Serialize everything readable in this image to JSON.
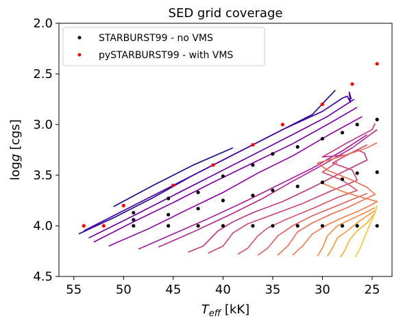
{
  "chart_data": {
    "type": "scatter",
    "title": "SED grid coverage",
    "xlabel_main": "T",
    "xlabel_sub": "eff",
    "xlabel_unit": " [kK]",
    "ylabel_prefix": "log",
    "ylabel_var": "g",
    "ylabel_unit": " [cgs]",
    "xlim": [
      56.5,
      23.0
    ],
    "ylim": [
      4.5,
      2.0
    ],
    "y_inverted": true,
    "x_inverted": true,
    "xticks": [
      55,
      50,
      45,
      40,
      35,
      30,
      25
    ],
    "yticks": [
      2.0,
      2.5,
      3.0,
      3.5,
      4.0,
      4.5
    ],
    "xtick_labels": [
      "55",
      "50",
      "45",
      "40",
      "35",
      "30",
      "25"
    ],
    "ytick_labels": [
      "2.0",
      "2.5",
      "3.0",
      "3.5",
      "4.0",
      "4.5"
    ],
    "grid": false,
    "legend_position": "top-left",
    "series": [
      {
        "name": "STARBURST99 - no VMS",
        "color": "#000000",
        "points": [
          [
            49,
            4.0
          ],
          [
            45.5,
            4.0
          ],
          [
            42.5,
            4.0
          ],
          [
            40,
            4.0
          ],
          [
            37,
            4.0
          ],
          [
            35,
            4.0
          ],
          [
            32.5,
            4.0
          ],
          [
            30,
            4.0
          ],
          [
            28,
            4.0
          ],
          [
            26.5,
            4.0
          ],
          [
            24.5,
            4.0
          ],
          [
            49,
            3.87
          ],
          [
            49,
            3.94
          ],
          [
            45.5,
            3.89
          ],
          [
            45.5,
            3.73
          ],
          [
            42.5,
            3.83
          ],
          [
            42.5,
            3.67
          ],
          [
            40,
            3.75
          ],
          [
            40,
            3.51
          ],
          [
            37,
            3.7
          ],
          [
            37,
            3.4
          ],
          [
            35,
            3.65
          ],
          [
            35,
            3.29
          ],
          [
            32.5,
            3.61
          ],
          [
            32.5,
            3.22
          ],
          [
            30,
            3.57
          ],
          [
            30,
            3.14
          ],
          [
            28,
            3.54
          ],
          [
            28,
            3.08
          ],
          [
            26.5,
            3.48
          ],
          [
            26.5,
            3.0
          ],
          [
            24.5,
            3.47
          ],
          [
            24.5,
            2.95
          ]
        ]
      },
      {
        "name": "pySTARBURST99 - with VMS",
        "color": "#ff0000",
        "points": [
          [
            54,
            4.0
          ],
          [
            52,
            4.0
          ],
          [
            50,
            3.8
          ],
          [
            45,
            3.6
          ],
          [
            41,
            3.4
          ],
          [
            37,
            3.2
          ],
          [
            34,
            3.0
          ],
          [
            30,
            2.8
          ],
          [
            27,
            2.6
          ],
          [
            24.5,
            2.4
          ]
        ]
      }
    ],
    "tracks": [
      {
        "color": "#1a0b8a",
        "points": [
          [
            51,
            3.81
          ],
          [
            47,
            3.6
          ],
          [
            43,
            3.4
          ],
          [
            39,
            3.23
          ]
        ]
      },
      {
        "color": "#2a0593",
        "points": [
          [
            54.5,
            4.08
          ],
          [
            51,
            3.92
          ],
          [
            47,
            3.72
          ],
          [
            43,
            3.5
          ],
          [
            39,
            3.3
          ],
          [
            35,
            3.1
          ],
          [
            31,
            2.9
          ],
          [
            28.7,
            2.66
          ]
        ]
      },
      {
        "color": "#4a02a0",
        "points": [
          [
            54,
            4.05
          ],
          [
            50,
            3.85
          ],
          [
            46,
            3.65
          ],
          [
            42,
            3.45
          ],
          [
            38,
            3.25
          ],
          [
            34,
            3.05
          ],
          [
            30,
            2.87
          ],
          [
            28,
            2.74
          ],
          [
            27.5,
            2.72
          ],
          [
            27.2,
            2.78
          ],
          [
            27.3,
            2.68
          ],
          [
            27.1,
            2.75
          ]
        ]
      },
      {
        "color": "#6a00a8",
        "points": [
          [
            53.5,
            4.12
          ],
          [
            49,
            3.9
          ],
          [
            45,
            3.7
          ],
          [
            41,
            3.5
          ],
          [
            37,
            3.3
          ],
          [
            33,
            3.1
          ],
          [
            29.5,
            2.92
          ],
          [
            26.8,
            2.75
          ]
        ]
      },
      {
        "color": "#7e03a8",
        "points": [
          [
            53,
            4.16
          ],
          [
            49,
            3.96
          ],
          [
            45,
            3.77
          ],
          [
            41,
            3.57
          ],
          [
            37,
            3.38
          ],
          [
            33,
            3.19
          ],
          [
            29.5,
            3.0
          ],
          [
            26.5,
            2.83
          ]
        ]
      },
      {
        "color": "#8f0da4",
        "points": [
          [
            51.5,
            4.2
          ],
          [
            47.5,
            4.03
          ],
          [
            44,
            3.86
          ],
          [
            40,
            3.67
          ],
          [
            36.5,
            3.48
          ],
          [
            33,
            3.31
          ],
          [
            29.5,
            3.11
          ],
          [
            26,
            2.92
          ]
        ]
      },
      {
        "color": "#a2229b",
        "points": [
          [
            48.5,
            4.23
          ],
          [
            45,
            4.08
          ],
          [
            41.5,
            3.93
          ],
          [
            38,
            3.77
          ],
          [
            34.5,
            3.6
          ],
          [
            31,
            3.43
          ],
          [
            28,
            3.26
          ],
          [
            25.5,
            3.1
          ]
        ]
      },
      {
        "color": "#b22d8f",
        "points": [
          [
            46.5,
            4.21
          ],
          [
            43,
            4.06
          ],
          [
            39.5,
            3.9
          ],
          [
            36,
            3.73
          ],
          [
            33,
            3.56
          ],
          [
            30,
            3.4
          ],
          [
            27,
            3.23
          ],
          [
            24.5,
            3.05
          ]
        ]
      },
      {
        "color": "#c03a83",
        "points": [
          [
            43.5,
            4.26
          ],
          [
            42,
            4.2
          ],
          [
            40.5,
            4.05
          ],
          [
            39,
            3.96
          ],
          [
            37,
            3.87
          ],
          [
            34,
            3.76
          ],
          [
            31,
            3.62
          ],
          [
            28,
            3.47
          ],
          [
            25.5,
            3.35
          ],
          [
            25.8,
            3.28
          ],
          [
            26.5,
            3.25
          ],
          [
            27.5,
            3.3
          ],
          [
            30,
            3.32
          ],
          [
            27.5,
            3.18
          ],
          [
            25,
            3.05
          ],
          [
            24.7,
            2.99
          ]
        ]
      },
      {
        "color": "#cc4778",
        "points": [
          [
            41.5,
            4.27
          ],
          [
            40,
            4.2
          ],
          [
            39,
            4.07
          ],
          [
            37.5,
            3.98
          ],
          [
            35,
            3.89
          ],
          [
            32,
            3.78
          ],
          [
            29,
            3.65
          ],
          [
            26.5,
            3.55
          ],
          [
            27,
            3.45
          ],
          [
            29,
            3.38
          ],
          [
            27.5,
            3.3
          ],
          [
            25.5,
            3.2
          ]
        ]
      },
      {
        "color": "#d6556d",
        "points": [
          [
            38.5,
            4.28
          ],
          [
            37.5,
            4.22
          ],
          [
            36.5,
            4.1
          ],
          [
            35.5,
            4.02
          ],
          [
            33.5,
            3.93
          ],
          [
            31,
            3.83
          ],
          [
            28.5,
            3.72
          ],
          [
            26.5,
            3.65
          ],
          [
            28,
            3.55
          ],
          [
            30,
            3.47
          ],
          [
            28.5,
            3.37
          ]
        ]
      },
      {
        "color": "#e16462",
        "points": [
          [
            36.5,
            4.29
          ],
          [
            35.5,
            4.22
          ],
          [
            34.5,
            4.1
          ],
          [
            33,
            4.0
          ],
          [
            31,
            3.9
          ],
          [
            29,
            3.82
          ],
          [
            27,
            3.74
          ],
          [
            25.5,
            3.68
          ]
        ]
      },
      {
        "color": "#e97257",
        "points": [
          [
            34.5,
            4.29
          ],
          [
            33.5,
            4.2
          ],
          [
            32.5,
            4.06
          ],
          [
            31,
            3.97
          ],
          [
            29,
            3.88
          ],
          [
            27.5,
            3.82
          ],
          [
            26,
            3.75
          ],
          [
            24.7,
            3.69
          ],
          [
            25.5,
            3.62
          ],
          [
            27,
            3.55
          ],
          [
            29.5,
            3.45
          ],
          [
            30.5,
            3.38
          ],
          [
            29,
            3.34
          ],
          [
            27,
            3.28
          ],
          [
            25.5,
            3.23
          ],
          [
            24.5,
            3.18
          ]
        ]
      },
      {
        "color": "#f0804e",
        "points": [
          [
            33,
            4.29
          ],
          [
            32,
            4.2
          ],
          [
            31,
            4.08
          ],
          [
            29.5,
            3.99
          ],
          [
            28,
            3.92
          ],
          [
            26.5,
            3.86
          ],
          [
            25,
            3.79
          ],
          [
            24.5,
            3.76
          ],
          [
            26,
            3.72
          ],
          [
            28,
            3.66
          ],
          [
            30,
            3.58
          ]
        ]
      },
      {
        "color": "#f48e44",
        "points": [
          [
            30.5,
            4.3
          ],
          [
            30,
            4.22
          ],
          [
            29.5,
            4.1
          ],
          [
            28.5,
            4.0
          ],
          [
            27,
            3.93
          ],
          [
            25.5,
            3.86
          ],
          [
            24.7,
            3.82
          ]
        ]
      },
      {
        "color": "#f89b3d",
        "points": [
          [
            29.5,
            4.3
          ],
          [
            29,
            4.22
          ],
          [
            28.5,
            4.12
          ],
          [
            27.5,
            4.05
          ],
          [
            26.5,
            3.97
          ],
          [
            25.5,
            3.9
          ],
          [
            24.7,
            3.85
          ]
        ]
      },
      {
        "color": "#fdb32f",
        "points": [
          [
            28.2,
            4.31
          ],
          [
            27.8,
            4.25
          ],
          [
            27.2,
            4.13
          ],
          [
            26.5,
            4.05
          ],
          [
            25.5,
            3.97
          ],
          [
            24.7,
            3.87
          ]
        ]
      },
      {
        "color": "#fbc831",
        "points": [
          [
            26.7,
            4.31
          ],
          [
            26.2,
            4.22
          ],
          [
            25.7,
            4.1
          ],
          [
            25.2,
            3.98
          ],
          [
            24.7,
            3.87
          ],
          [
            24.5,
            3.8
          ]
        ]
      }
    ]
  }
}
